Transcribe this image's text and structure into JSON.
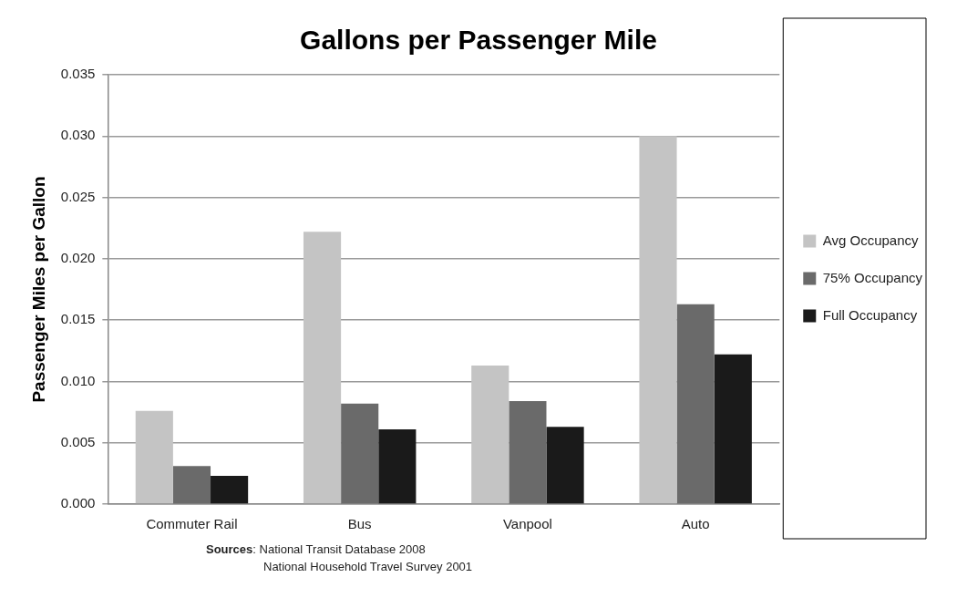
{
  "chart_data": {
    "type": "bar",
    "title": "Gallons per Passenger Mile",
    "ylabel": "Passenger Miles per Gallon",
    "categories": [
      "Commuter Rail",
      "Bus",
      "Vanpool",
      "Auto"
    ],
    "series": [
      {
        "name": "Avg Occupancy",
        "color": "#c4c4c4",
        "values": [
          0.0076,
          0.0222,
          0.0113,
          0.03
        ]
      },
      {
        "name": "75% Occupancy",
        "color": "#6a6a6a",
        "values": [
          0.0031,
          0.0082,
          0.0084,
          0.0163
        ]
      },
      {
        "name": "Full Occupancy",
        "color": "#1a1a1a",
        "values": [
          0.0023,
          0.0061,
          0.0063,
          0.0122
        ]
      }
    ],
    "ylim": [
      0,
      0.035
    ],
    "yticks": [
      {
        "value": 0,
        "label": "0.000"
      },
      {
        "value": 0.005,
        "label": "0.005"
      },
      {
        "value": 0.01,
        "label": "0.010"
      },
      {
        "value": 0.015,
        "label": "0.015"
      },
      {
        "value": 0.02,
        "label": "0.020"
      },
      {
        "value": 0.025,
        "label": "0.025"
      },
      {
        "value": 0.03,
        "label": "0.030"
      },
      {
        "value": 0.035,
        "label": "0.035"
      }
    ],
    "grid": "y",
    "legend": "right",
    "annotations": [
      "Sources: National Transit Database 2008",
      "National Household Travel Survey 2001"
    ]
  }
}
